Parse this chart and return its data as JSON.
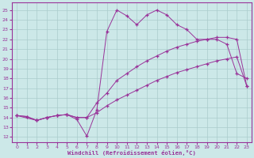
{
  "xlabel": "Windchill (Refroidissement éolien,°C)",
  "bg_color": "#cce8e8",
  "line_color": "#993399",
  "grid_color": "#aacccc",
  "xlim": [
    -0.5,
    23.5
  ],
  "ylim": [
    11.5,
    25.8
  ],
  "xticks": [
    0,
    1,
    2,
    3,
    4,
    5,
    6,
    7,
    8,
    9,
    10,
    11,
    12,
    13,
    14,
    15,
    16,
    17,
    18,
    19,
    20,
    21,
    22,
    23
  ],
  "yticks": [
    12,
    13,
    14,
    15,
    16,
    17,
    18,
    19,
    20,
    21,
    22,
    23,
    24,
    25
  ],
  "curve1_x": [
    0,
    1,
    2,
    3,
    4,
    5,
    6,
    7,
    8,
    9,
    10,
    11,
    12,
    13,
    14,
    15,
    16,
    17,
    18,
    19,
    20,
    21,
    22,
    23
  ],
  "curve1_y": [
    14.2,
    14.1,
    13.7,
    14.0,
    14.2,
    14.3,
    13.8,
    12.1,
    14.8,
    22.8,
    25.0,
    24.4,
    23.5,
    24.5,
    25.0,
    24.5,
    23.5,
    23.0,
    22.0,
    22.0,
    22.0,
    21.5,
    18.5,
    18.0
  ],
  "curve2_x": [
    0,
    1,
    2,
    3,
    4,
    5,
    6,
    7,
    8,
    9,
    10,
    11,
    12,
    13,
    14,
    15,
    16,
    17,
    18,
    19,
    20,
    21,
    22,
    23
  ],
  "curve2_y": [
    14.2,
    14.1,
    13.7,
    14.0,
    14.2,
    14.3,
    14.0,
    14.0,
    15.5,
    16.5,
    17.8,
    18.5,
    19.2,
    19.8,
    20.3,
    20.8,
    21.2,
    21.5,
    21.8,
    22.0,
    22.2,
    22.2,
    22.0,
    17.2
  ],
  "curve3_x": [
    0,
    2,
    3,
    4,
    5,
    6,
    7,
    8,
    9,
    10,
    11,
    12,
    13,
    14,
    15,
    16,
    17,
    18,
    19,
    20,
    21,
    22,
    23
  ],
  "curve3_y": [
    14.2,
    13.7,
    14.0,
    14.2,
    14.3,
    14.0,
    14.0,
    14.5,
    15.2,
    15.8,
    16.3,
    16.8,
    17.3,
    17.8,
    18.2,
    18.6,
    18.9,
    19.2,
    19.5,
    19.8,
    20.0,
    20.2,
    17.2
  ]
}
